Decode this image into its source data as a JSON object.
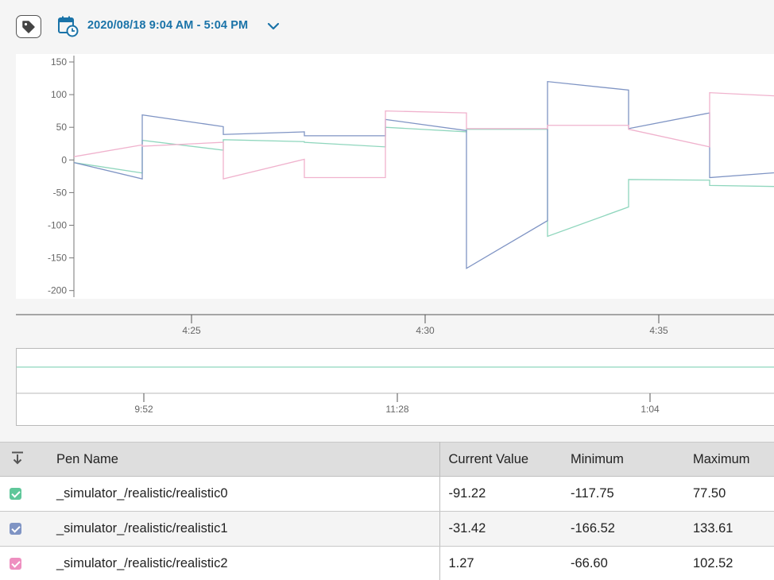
{
  "toolbar": {
    "date_range": "2020/08/18 9:04 AM - 5:04 PM",
    "tag_icon": "tag-icon",
    "calendar_icon": "calendar-clock-icon",
    "dropdown_icon": "chevron-down-icon",
    "accent": "#1a73a8"
  },
  "chart_data": {
    "type": "line",
    "y_ticks": [
      "150",
      "100",
      "50",
      "0",
      "-50",
      "-100",
      "-150",
      "-200"
    ],
    "ylim": [
      -200,
      150
    ],
    "x_ticks": [
      "4:25",
      "4:30",
      "4:35"
    ],
    "series": [
      {
        "name": "_simulator_/realistic/realistic0",
        "color": "#8fd6bd",
        "points": [
          [
            0,
            -4
          ],
          [
            86,
            -20
          ],
          [
            86,
            30
          ],
          [
            188,
            15
          ],
          [
            188,
            31
          ],
          [
            290,
            28
          ],
          [
            290,
            27
          ],
          [
            392,
            20
          ],
          [
            392,
            50
          ],
          [
            494,
            43
          ],
          [
            494,
            47
          ],
          [
            596,
            47
          ],
          [
            596,
            -117
          ],
          [
            698,
            -72
          ],
          [
            698,
            -30
          ],
          [
            800,
            -31
          ],
          [
            800,
            -39
          ],
          [
            900,
            -41
          ]
        ]
      },
      {
        "name": "_simulator_/realistic/realistic1",
        "color": "#7f94c4",
        "points": [
          [
            0,
            -4
          ],
          [
            86,
            -29
          ],
          [
            86,
            69
          ],
          [
            188,
            51
          ],
          [
            188,
            39
          ],
          [
            290,
            43
          ],
          [
            290,
            37
          ],
          [
            392,
            37
          ],
          [
            392,
            62
          ],
          [
            494,
            45
          ],
          [
            494,
            -166
          ],
          [
            596,
            -93
          ],
          [
            596,
            120
          ],
          [
            698,
            107
          ],
          [
            698,
            48
          ],
          [
            800,
            72
          ],
          [
            800,
            -27
          ],
          [
            900,
            -18
          ]
        ]
      },
      {
        "name": "_simulator_/realistic/realistic2",
        "color": "#f0b2cd",
        "points": [
          [
            0,
            5
          ],
          [
            86,
            23
          ],
          [
            86,
            21
          ],
          [
            188,
            27
          ],
          [
            188,
            -29
          ],
          [
            290,
            1
          ],
          [
            290,
            -27
          ],
          [
            392,
            -27
          ],
          [
            392,
            75
          ],
          [
            494,
            72
          ],
          [
            494,
            48
          ],
          [
            596,
            48
          ],
          [
            596,
            53
          ],
          [
            698,
            53
          ],
          [
            698,
            47
          ],
          [
            800,
            20
          ],
          [
            800,
            103
          ],
          [
            900,
            97
          ]
        ]
      }
    ]
  },
  "nav": {
    "x_ticks": [
      "9:52",
      "11:28",
      "1:04"
    ]
  },
  "table": {
    "sort_icon": "sort-down-icon",
    "headers": {
      "name": "Pen Name",
      "current": "Current Value",
      "min": "Minimum",
      "max": "Maximum"
    },
    "rows": [
      {
        "name": "_simulator_/realistic/realistic0",
        "current": "-91.22",
        "min": "-117.75",
        "max": "77.50",
        "color": "#5fc79a"
      },
      {
        "name": "_simulator_/realistic/realistic1",
        "current": "-31.42",
        "min": "-166.52",
        "max": "133.61",
        "color": "#7f94c4"
      },
      {
        "name": "_simulator_/realistic/realistic2",
        "current": "1.27",
        "min": "-66.60",
        "max": "102.52",
        "color": "#ee8fc0"
      }
    ]
  }
}
